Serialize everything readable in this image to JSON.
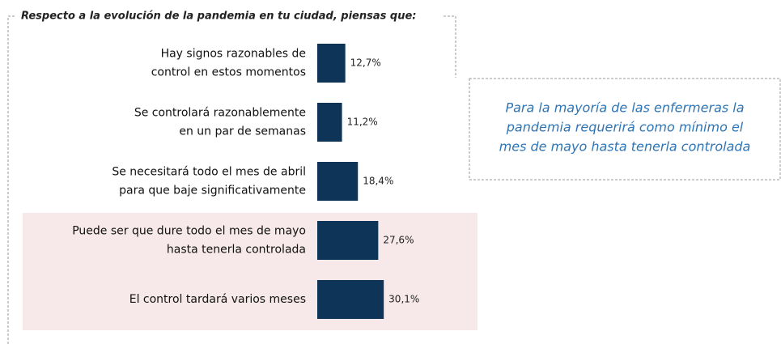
{
  "chart_data": {
    "type": "bar",
    "orientation": "horizontal",
    "title": "Respecto  a la evolución de la pandemia en tu ciudad, piensas que:",
    "categories": [
      [
        "Hay signos razonables de",
        "control en estos momentos"
      ],
      [
        "Se controlará razonablemente",
        "en un par de semanas"
      ],
      [
        "Se necesitará todo el mes de abril",
        "para que baje significativamente"
      ],
      [
        "Puede ser que dure todo el mes de mayo",
        "hasta tenerla controlada"
      ],
      [
        "El control tardará varios meses"
      ]
    ],
    "values": [
      12.7,
      11.2,
      18.4,
      27.6,
      30.1
    ],
    "value_labels": [
      "12,7%",
      "11,2%",
      "18,4%",
      "27,6%",
      "30,1%"
    ],
    "color": "#0e3457",
    "annotation": [
      "Para la mayoría de las enfermeras la",
      "pandemia requerirá como mínimo el",
      "mes de mayo hasta tenerla controlada"
    ]
  }
}
